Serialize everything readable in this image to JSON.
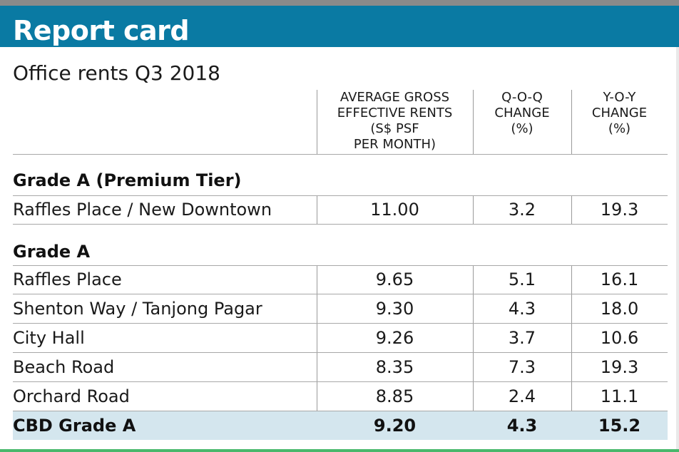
{
  "header": {
    "title": "Report card"
  },
  "subtitle": "Office rents Q3 2018",
  "columns": [
    {
      "lines": [
        "AVERAGE GROSS",
        "EFFECTIVE RENTS",
        "(S$ PSF",
        "PER MONTH)"
      ]
    },
    {
      "lines": [
        "Q-o-Q",
        "CHANGE",
        "(%)"
      ]
    },
    {
      "lines": [
        "Y-o-Y",
        "CHANGE",
        "(%)"
      ]
    }
  ],
  "sections": [
    {
      "label": "Grade A (Premium Tier)",
      "rows": [
        {
          "name": "Raffles Place / New Downtown",
          "rent": "11.00",
          "qoq": "3.2",
          "yoy": "19.3"
        }
      ]
    },
    {
      "label": "Grade A",
      "rows": [
        {
          "name": "Raffles Place",
          "rent": "9.65",
          "qoq": "5.1",
          "yoy": "16.1"
        },
        {
          "name": "Shenton Way / Tanjong Pagar",
          "rent": "9.30",
          "qoq": "4.3",
          "yoy": "18.0"
        },
        {
          "name": "City Hall",
          "rent": "9.26",
          "qoq": "3.7",
          "yoy": "10.6"
        },
        {
          "name": "Beach Road",
          "rent": "8.35",
          "qoq": "7.3",
          "yoy": "19.3"
        },
        {
          "name": "Orchard Road",
          "rent": "8.85",
          "qoq": "2.4",
          "yoy": "11.1"
        }
      ]
    }
  ],
  "total": {
    "name": "CBD Grade A",
    "rent": "9.20",
    "qoq": "4.3",
    "yoy": "15.2"
  },
  "colors": {
    "header_bg": "#0a7aa3",
    "total_bg": "#d4e6ee",
    "bottom_accent": "#49b86c"
  },
  "chart_data": {
    "type": "table",
    "title": "Report card",
    "subtitle": "Office rents Q3 2018",
    "columns": [
      "AVERAGE GROSS EFFECTIVE RENTS (S$ PSF PER MONTH)",
      "Q-o-Q CHANGE (%)",
      "Y-o-Y CHANGE (%)"
    ],
    "groups": [
      {
        "group": "Grade A (Premium Tier)",
        "rows": [
          {
            "location": "Raffles Place / New Downtown",
            "values": [
              11.0,
              3.2,
              19.3
            ]
          }
        ]
      },
      {
        "group": "Grade A",
        "rows": [
          {
            "location": "Raffles Place",
            "values": [
              9.65,
              5.1,
              16.1
            ]
          },
          {
            "location": "Shenton Way / Tanjong Pagar",
            "values": [
              9.3,
              4.3,
              18.0
            ]
          },
          {
            "location": "City Hall",
            "values": [
              9.26,
              3.7,
              10.6
            ]
          },
          {
            "location": "Beach Road",
            "values": [
              8.35,
              7.3,
              19.3
            ]
          },
          {
            "location": "Orchard Road",
            "values": [
              8.85,
              2.4,
              11.1
            ]
          }
        ]
      }
    ],
    "total": {
      "location": "CBD Grade A",
      "values": [
        9.2,
        4.3,
        15.2
      ]
    }
  }
}
